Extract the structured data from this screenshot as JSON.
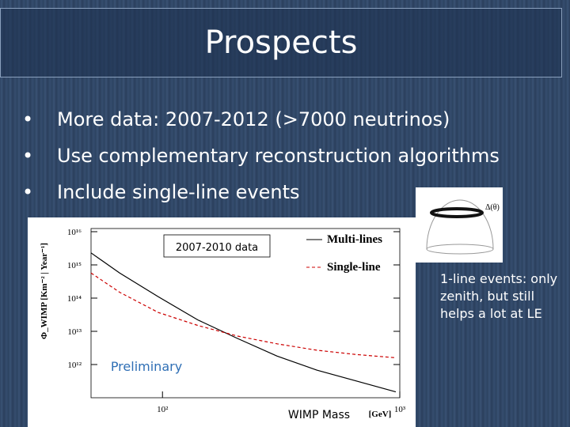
{
  "header": {
    "title": "Prospects"
  },
  "bullets": [
    "More data: 2007-2012 (>7000 neutrinos)",
    "Use complementary reconstruction algorithms",
    "Include single-line events"
  ],
  "diagram": {
    "label": "Δ(θ)"
  },
  "side_note": "1-line events: only zenith, but still helps a lot at LE",
  "chart_data": {
    "type": "line",
    "log_x": true,
    "log_y": true,
    "ylabel": "Φ_WIMP [Km⁻² | Year⁻¹]",
    "xlabel": "WIMP Mass",
    "xunit": "[GeV]",
    "annotations": [
      "2007-2010 data",
      "Preliminary"
    ],
    "x": [
      50,
      66,
      96,
      141,
      207,
      304,
      447,
      656,
      962
    ],
    "series": [
      {
        "name": "Multi-lines",
        "color": "#000000",
        "dash": false,
        "values": [
          2300000000000000.0,
          570000000000000.0,
          110000000000000.0,
          22000000000000.0,
          6100000000000.0,
          1800000000000.0,
          680000000000.0,
          320000000000.0,
          150000000000.0
        ]
      },
      {
        "name": "Single-line",
        "color": "#cc0000",
        "dash": true,
        "values": [
          570000000000000.0,
          150000000000000.0,
          37000000000000.0,
          15000000000000.0,
          7200000000000.0,
          4200000000000.0,
          2700000000000.0,
          2000000000000.0,
          1600000000000.0
        ]
      }
    ],
    "xlim": [
      50,
      1000
    ],
    "ylim": [
      100000000000.0,
      1e+16
    ],
    "xticks": [
      {
        "value": 100,
        "label": "10²"
      },
      {
        "value": 1000,
        "label": "10³"
      }
    ],
    "yticks": [
      {
        "value": 1000000000000.0,
        "label": "10¹²"
      },
      {
        "value": 10000000000000.0,
        "label": "10¹³"
      },
      {
        "value": 100000000000000.0,
        "label": "10¹⁴"
      },
      {
        "value": 1000000000000000.0,
        "label": "10¹⁵"
      },
      {
        "value": 1e+16,
        "label": "10¹⁶"
      }
    ]
  }
}
